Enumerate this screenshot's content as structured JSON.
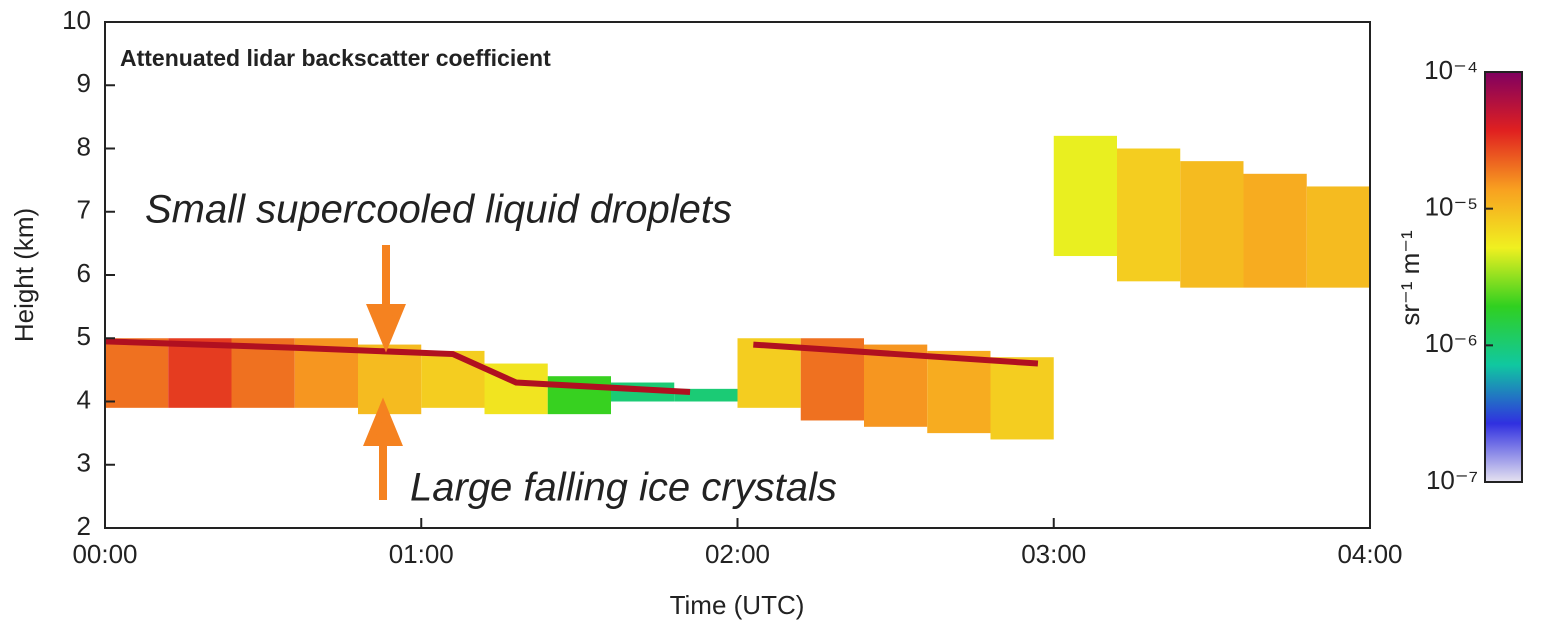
{
  "chart_data": {
    "type": "layers",
    "title": "Attenuated lidar backscatter coefficient",
    "x_label": "Time (UTC)",
    "y_label": "Height (km)",
    "colorbar_label": "sr⁻¹ m⁻¹",
    "xlim": [
      0,
      4
    ],
    "xticks": [
      {
        "value": 0,
        "label": "00:00"
      },
      {
        "value": 1,
        "label": "01:00"
      },
      {
        "value": 2,
        "label": "02:00"
      },
      {
        "value": 3,
        "label": "03:00"
      },
      {
        "value": 4,
        "label": "04:00"
      }
    ],
    "ylim": [
      2,
      10
    ],
    "yticks": [
      2,
      3,
      4,
      5,
      6,
      7,
      8,
      9,
      10
    ],
    "clim": [
      1e-07,
      0.0001
    ],
    "color_log": true,
    "cticks": [
      {
        "value": 0.0001,
        "label": "10⁻⁴"
      },
      {
        "value": 1e-05,
        "label": "10⁻⁵"
      },
      {
        "value": 1e-06,
        "label": "10⁻⁶"
      },
      {
        "value": 1e-07,
        "label": "10⁻⁷"
      }
    ],
    "colormap": [
      "#e6e3f0",
      "#3030e0",
      "#10c8a0",
      "#30d020",
      "#f0f020",
      "#f8a020",
      "#e02020",
      "#800060"
    ],
    "x": [
      0,
      0.2,
      0.4,
      0.6,
      0.8,
      1.0,
      1.2,
      1.4,
      1.6,
      1.8,
      2.0,
      2.2,
      2.4,
      2.6,
      2.8,
      3.0,
      3.2,
      3.4,
      3.6,
      3.8,
      4.0
    ],
    "layers": [
      {
        "base": [
          3.9,
          3.9,
          3.9,
          3.9,
          3.8,
          3.9,
          3.8,
          3.8,
          4.0,
          4.0,
          3.9,
          3.7,
          3.6,
          3.5,
          3.4,
          null,
          null,
          null,
          null,
          null
        ],
        "top": [
          5.0,
          5.0,
          5.0,
          5.0,
          4.9,
          4.8,
          4.6,
          4.4,
          4.3,
          4.2,
          5.0,
          5.0,
          4.9,
          4.8,
          4.7,
          null,
          null,
          null,
          null,
          null
        ],
        "values": [
          2e-05,
          3e-05,
          2e-05,
          1.5e-05,
          1e-05,
          8e-06,
          6e-06,
          2e-06,
          1e-06,
          1e-06,
          8e-06,
          2e-05,
          1.5e-05,
          1.2e-05,
          8e-06,
          null,
          null,
          null,
          null,
          null
        ]
      },
      {
        "base": [
          null,
          null,
          null,
          null,
          null,
          null,
          null,
          null,
          null,
          null,
          null,
          null,
          null,
          null,
          null,
          6.3,
          5.9,
          5.8,
          5.8,
          5.8
        ],
        "top": [
          null,
          null,
          null,
          null,
          null,
          null,
          null,
          null,
          null,
          null,
          null,
          null,
          null,
          null,
          null,
          8.2,
          8.0,
          7.8,
          7.6,
          7.4
        ],
        "values": [
          null,
          null,
          null,
          null,
          null,
          null,
          null,
          null,
          null,
          null,
          null,
          null,
          null,
          null,
          null,
          5e-06,
          8e-06,
          1e-05,
          1.2e-05,
          1e-05
        ]
      }
    ],
    "liquid_layer": {
      "color": "#b01020",
      "x": [
        0,
        0.6,
        1.1,
        1.3,
        1.85,
        2.0,
        2.05,
        2.5,
        2.95
      ],
      "values": [
        4.95,
        4.85,
        4.75,
        4.3,
        4.15,
        null,
        4.9,
        4.75,
        4.6
      ]
    },
    "annotations": [
      "Small supercooled liquid droplets",
      "Large falling ice crystals"
    ],
    "annotation_color": "#f58220"
  }
}
